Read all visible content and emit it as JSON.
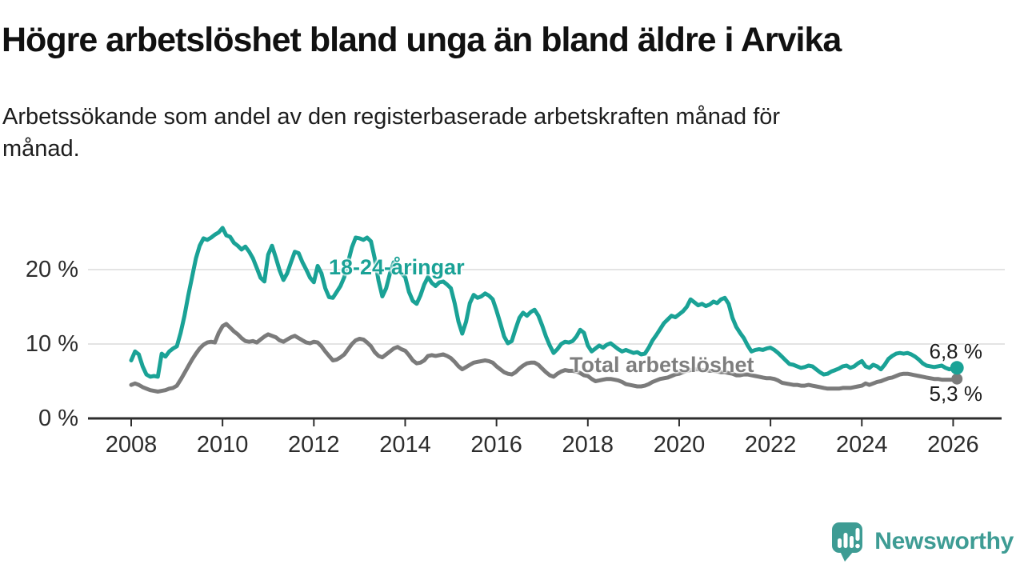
{
  "header": {
    "title": "Högre arbetslöshet bland unga än bland äldre i Arvika",
    "subtitle_lines": [
      "Arbetssökande som andel av den registerbaserade arbetskraften månad för",
      "månad."
    ]
  },
  "chart_data": {
    "type": "line",
    "title": "Högre arbetslöshet bland unga än bland äldre i Arvika",
    "subtitle": "Arbetssökande som andel av den registerbaserade arbetskraften månad för månad.",
    "unit": "%",
    "grid": "horizontal-only",
    "x_start_year": 2008,
    "points_per_year": 12,
    "x_axis": {
      "tick_years": [
        2008,
        2010,
        2012,
        2014,
        2016,
        2018,
        2020,
        2022,
        2024,
        2026
      ]
    },
    "y_axis": {
      "tick_values": [
        0,
        10,
        20
      ],
      "tick_labels": [
        "0 %",
        "10 %",
        "20 %"
      ],
      "range": [
        0,
        27
      ]
    },
    "colors": {
      "young": "#1AA296",
      "total": "#7B7B7B",
      "gridline": "#DCDCDC",
      "axis": "#2D2D2D",
      "value_label": "#1B1B1B"
    },
    "series": [
      {
        "name": "18-24-åringar",
        "color": "#1AA296",
        "end_label": "6,8 %",
        "end_value": 6.8,
        "values": [
          7.8,
          9.0,
          8.6,
          7.0,
          5.9,
          5.6,
          5.7,
          5.6,
          8.7,
          8.3,
          9.0,
          9.4,
          9.7,
          11.5,
          13.8,
          16.5,
          19.0,
          21.5,
          23.2,
          24.2,
          24.0,
          24.3,
          24.7,
          25.0,
          25.6,
          24.6,
          24.4,
          23.6,
          23.2,
          22.7,
          23.1,
          22.4,
          21.5,
          20.2,
          18.9,
          18.4,
          22.0,
          23.2,
          21.6,
          19.9,
          18.6,
          19.5,
          21.0,
          22.4,
          22.2,
          21.0,
          20.0,
          18.9,
          18.3,
          20.5,
          19.5,
          17.5,
          16.3,
          16.2,
          17.0,
          17.8,
          19.0,
          21.0,
          23.0,
          24.3,
          24.2,
          24.0,
          24.3,
          23.8,
          21.5,
          18.5,
          16.4,
          17.5,
          19.5,
          21.0,
          20.5,
          19.5,
          19.0,
          17.0,
          15.8,
          15.4,
          16.5,
          18.0,
          19.0,
          18.2,
          17.8,
          18.3,
          18.4,
          18.0,
          17.5,
          15.5,
          13.0,
          11.4,
          13.0,
          15.5,
          16.6,
          16.2,
          16.4,
          16.8,
          16.5,
          16.0,
          14.5,
          12.8,
          11.0,
          10.1,
          10.4,
          12.0,
          13.5,
          14.2,
          13.8,
          14.3,
          14.6,
          13.8,
          12.5,
          11.0,
          9.8,
          8.8,
          9.3,
          10.0,
          10.3,
          10.2,
          10.4,
          11.0,
          11.9,
          11.5,
          9.8,
          9.0,
          9.4,
          9.8,
          9.5,
          9.9,
          10.1,
          9.7,
          9.3,
          9.0,
          9.2,
          9.0,
          8.8,
          8.9,
          8.6,
          8.7,
          9.5,
          10.5,
          11.2,
          12.0,
          12.8,
          13.3,
          13.8,
          13.6,
          14.0,
          14.4,
          15.0,
          16.0,
          15.6,
          15.2,
          15.4,
          15.1,
          15.3,
          15.7,
          15.5,
          16.0,
          16.2,
          15.4,
          13.5,
          12.3,
          11.5,
          10.8,
          9.8,
          9.0,
          9.2,
          9.3,
          9.2,
          9.4,
          9.5,
          9.2,
          8.8,
          8.3,
          7.8,
          7.3,
          7.2,
          7.0,
          6.8,
          6.9,
          7.1,
          7.0,
          6.6,
          6.2,
          5.9,
          6.0,
          6.3,
          6.5,
          6.7,
          7.0,
          7.1,
          6.8,
          7.0,
          7.4,
          7.7,
          7.0,
          6.8,
          7.2,
          7.0,
          6.6,
          7.2,
          8.0,
          8.4,
          8.7,
          8.8,
          8.7,
          8.8,
          8.6,
          8.3,
          7.9,
          7.4,
          7.1,
          7.0,
          6.9,
          7.0,
          7.1,
          6.8,
          6.6,
          6.7,
          6.8
        ]
      },
      {
        "name": "Total arbetslöshet",
        "color": "#7B7B7B",
        "end_label": "5,3 %",
        "end_value": 5.3,
        "values": [
          4.5,
          4.7,
          4.5,
          4.2,
          4.0,
          3.8,
          3.7,
          3.6,
          3.7,
          3.8,
          4.0,
          4.1,
          4.4,
          5.2,
          6.1,
          7.0,
          7.9,
          8.7,
          9.4,
          9.9,
          10.2,
          10.3,
          10.2,
          11.5,
          12.4,
          12.7,
          12.2,
          11.7,
          11.3,
          10.8,
          10.4,
          10.3,
          10.4,
          10.2,
          10.6,
          11.0,
          11.3,
          11.1,
          10.9,
          10.5,
          10.3,
          10.6,
          10.9,
          11.1,
          10.8,
          10.5,
          10.2,
          10.1,
          10.3,
          10.2,
          9.7,
          9.0,
          8.4,
          7.8,
          7.9,
          8.2,
          8.6,
          9.3,
          10.0,
          10.5,
          10.7,
          10.6,
          10.2,
          9.7,
          8.9,
          8.4,
          8.2,
          8.6,
          9.0,
          9.4,
          9.6,
          9.3,
          9.1,
          8.5,
          7.8,
          7.4,
          7.5,
          7.8,
          8.4,
          8.5,
          8.4,
          8.5,
          8.6,
          8.4,
          8.1,
          7.6,
          7.0,
          6.6,
          6.9,
          7.2,
          7.5,
          7.6,
          7.7,
          7.8,
          7.7,
          7.5,
          7.0,
          6.6,
          6.2,
          6.0,
          5.9,
          6.2,
          6.7,
          7.1,
          7.4,
          7.5,
          7.5,
          7.2,
          6.7,
          6.2,
          5.8,
          5.6,
          6.0,
          6.3,
          6.5,
          6.4,
          6.4,
          6.3,
          6.1,
          5.8,
          5.7,
          5.3,
          5.0,
          5.1,
          5.2,
          5.3,
          5.3,
          5.2,
          5.1,
          4.9,
          4.6,
          4.5,
          4.4,
          4.3,
          4.3,
          4.4,
          4.6,
          4.9,
          5.1,
          5.3,
          5.4,
          5.5,
          5.7,
          5.9,
          6.0,
          6.2,
          6.4,
          6.5,
          6.6,
          6.6,
          6.5,
          6.5,
          6.4,
          6.4,
          6.3,
          6.2,
          6.2,
          6.1,
          6.0,
          5.8,
          5.8,
          5.9,
          5.9,
          5.8,
          5.7,
          5.6,
          5.5,
          5.4,
          5.4,
          5.3,
          5.1,
          4.8,
          4.7,
          4.6,
          4.5,
          4.5,
          4.4,
          4.4,
          4.5,
          4.4,
          4.3,
          4.2,
          4.1,
          4.0,
          4.0,
          4.0,
          4.0,
          4.1,
          4.1,
          4.1,
          4.2,
          4.3,
          4.4,
          4.7,
          4.5,
          4.7,
          4.9,
          5.0,
          5.2,
          5.4,
          5.5,
          5.7,
          5.9,
          6.0,
          6.0,
          5.9,
          5.8,
          5.7,
          5.6,
          5.5,
          5.4,
          5.3,
          5.3,
          5.2,
          5.2,
          5.2,
          5.2,
          5.3
        ]
      }
    ]
  },
  "branding": {
    "logo_text": "Newsworthy",
    "logo_color": "#3E9C94",
    "logo_icon": "speech-bubble-bar-chart-exclamation"
  }
}
